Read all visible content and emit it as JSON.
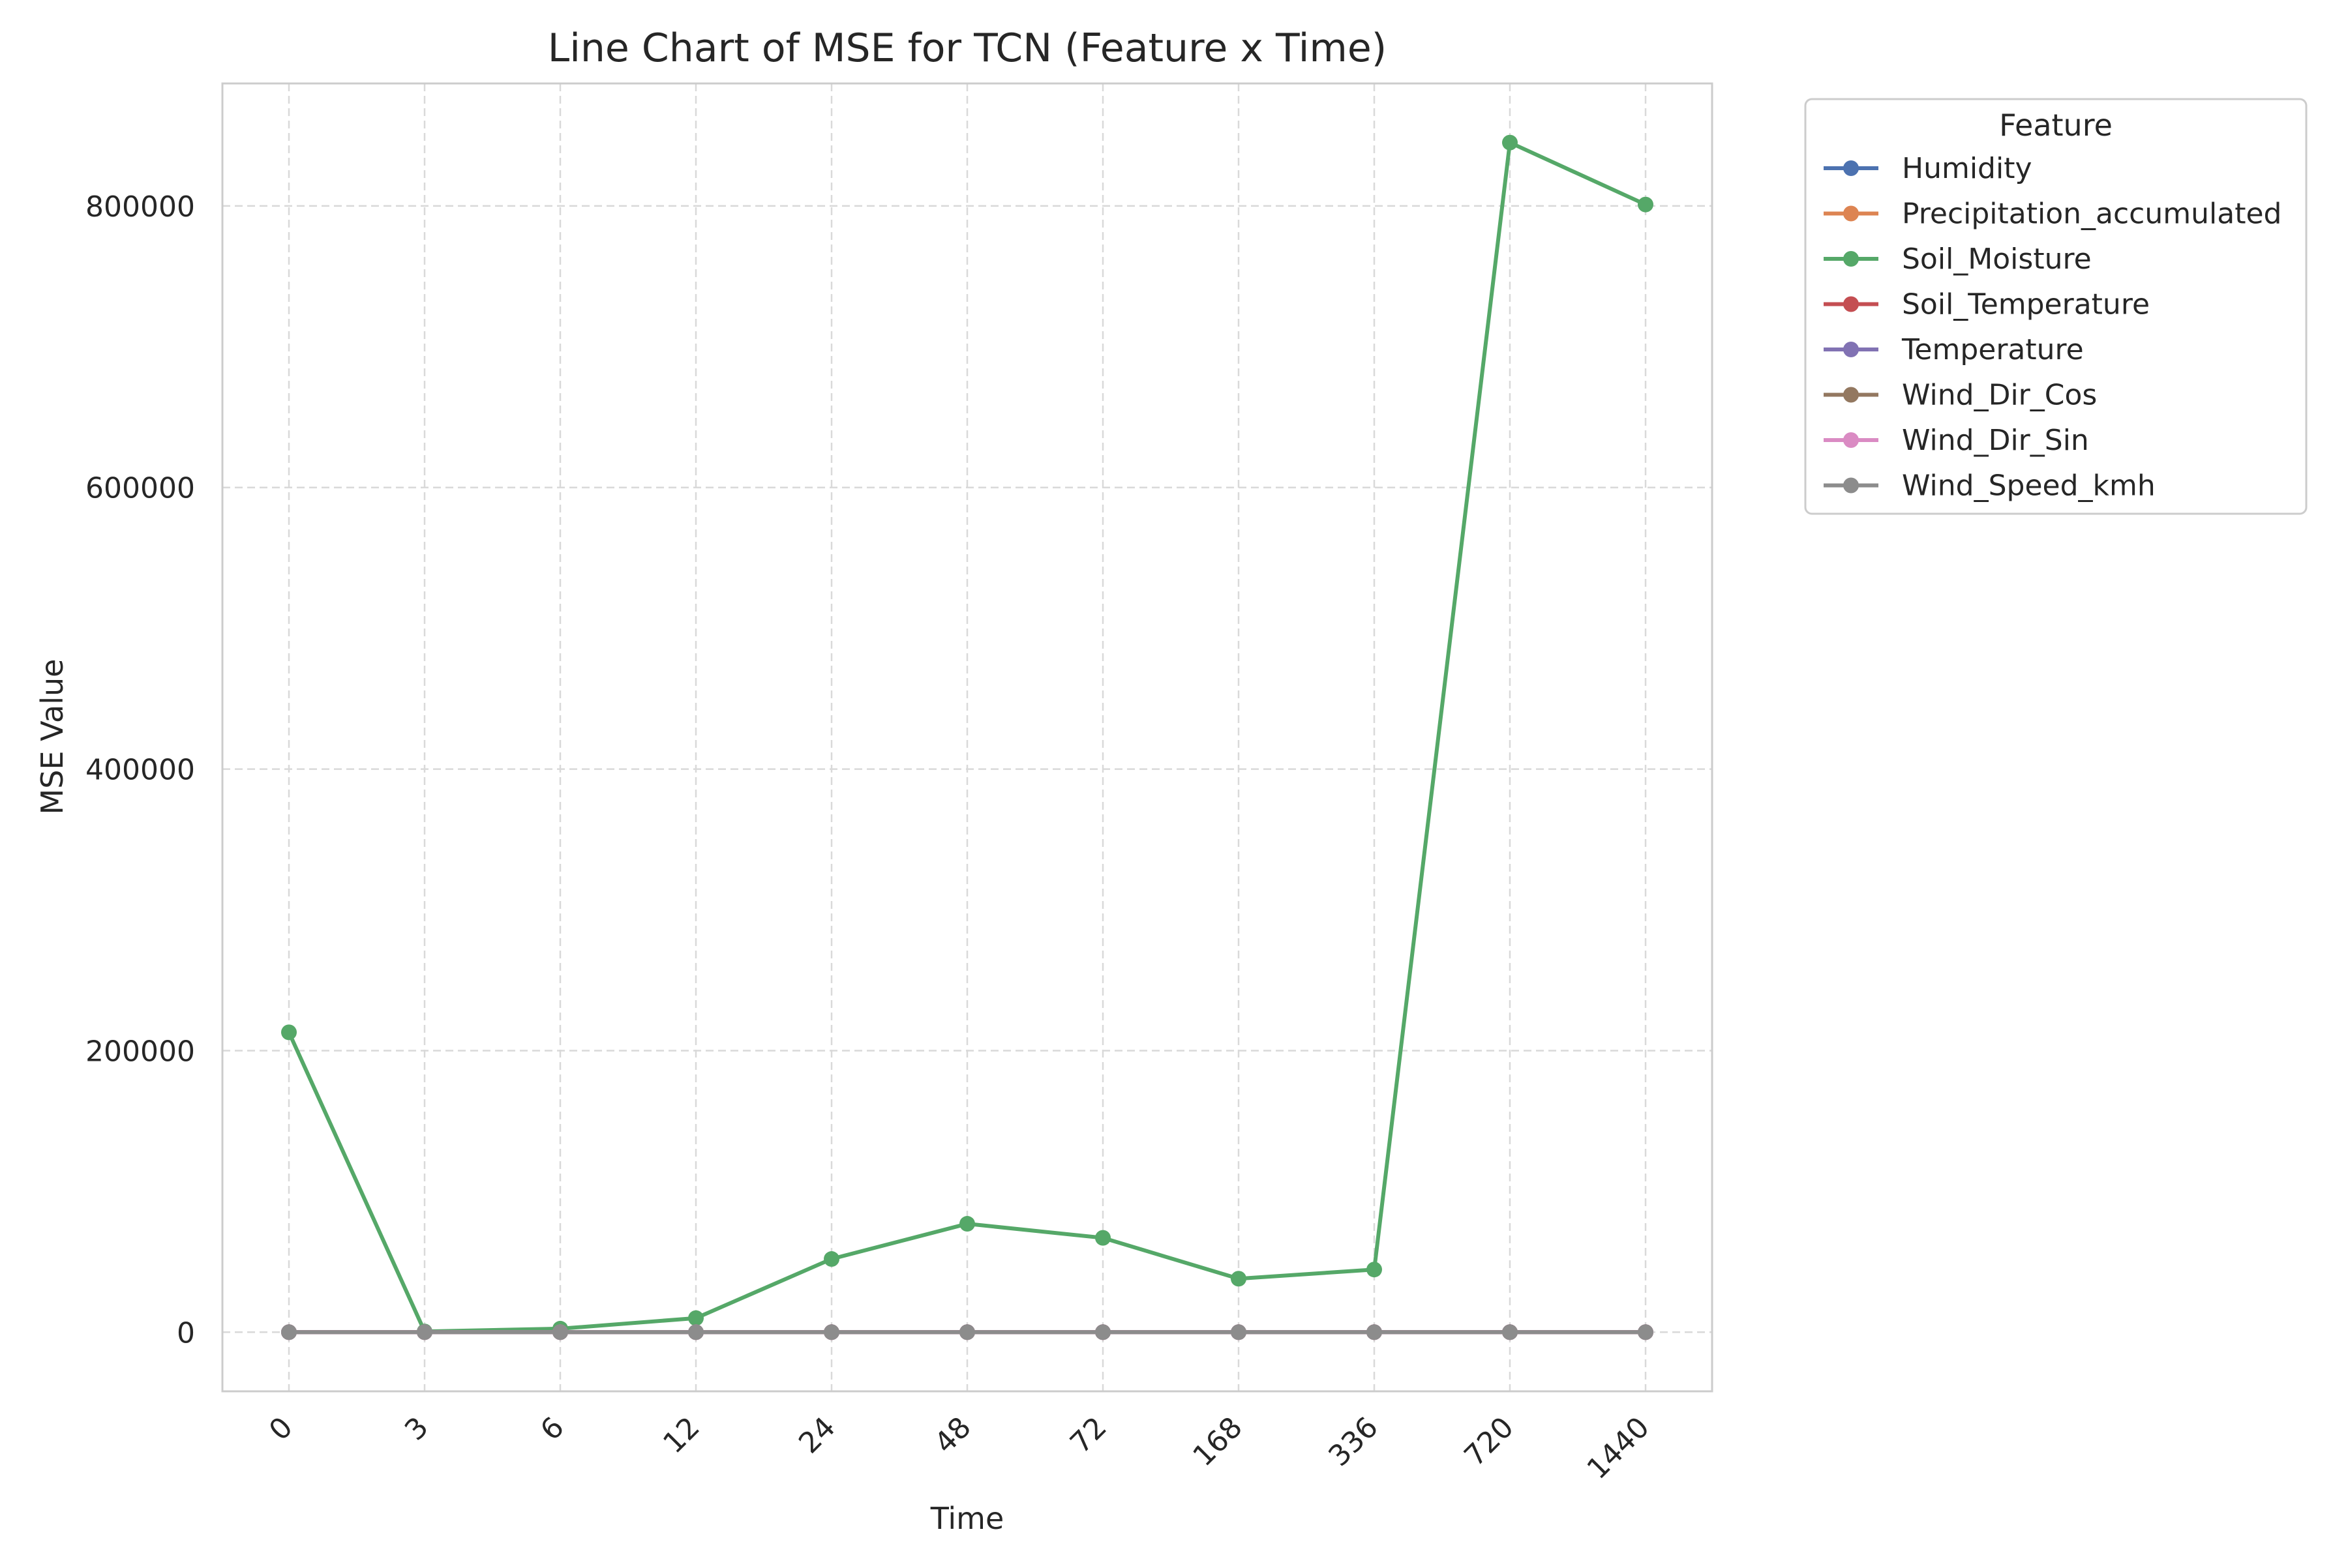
{
  "chart_data": {
    "type": "line",
    "title": "Line Chart of MSE for TCN (Feature x Time)",
    "xlabel": "Time",
    "ylabel": "MSE Value",
    "categories": [
      "0",
      "3",
      "6",
      "12",
      "24",
      "48",
      "72",
      "168",
      "336",
      "720",
      "1440"
    ],
    "yticks": [
      0,
      200000,
      400000,
      600000,
      800000
    ],
    "ytick_labels": [
      "0",
      "200000",
      "400000",
      "600000",
      "800000"
    ],
    "ylim": [
      -42000,
      887000
    ],
    "grid": true,
    "legend": {
      "title": "Feature",
      "placement": "outside-top-right"
    },
    "series": [
      {
        "name": "Humidity",
        "color": "#4c72b0",
        "values": [
          0,
          0,
          0,
          0,
          0,
          0,
          0,
          0,
          0,
          0,
          0
        ]
      },
      {
        "name": "Precipitation_accumulated",
        "color": "#dd8452",
        "values": [
          0,
          0,
          0,
          0,
          0,
          0,
          0,
          0,
          0,
          0,
          0
        ]
      },
      {
        "name": "Soil_Moisture",
        "color": "#55a868",
        "values": [
          213000,
          500,
          2500,
          10000,
          52000,
          77000,
          67000,
          38000,
          44500,
          845000,
          801000
        ]
      },
      {
        "name": "Soil_Temperature",
        "color": "#c44e52",
        "values": [
          0,
          0,
          0,
          0,
          0,
          0,
          0,
          0,
          0,
          0,
          0
        ]
      },
      {
        "name": "Temperature",
        "color": "#8172b3",
        "values": [
          0,
          0,
          0,
          0,
          0,
          0,
          0,
          0,
          0,
          0,
          0
        ]
      },
      {
        "name": "Wind_Dir_Cos",
        "color": "#937860",
        "values": [
          0,
          0,
          0,
          0,
          0,
          0,
          0,
          0,
          0,
          0,
          0
        ]
      },
      {
        "name": "Wind_Dir_Sin",
        "color": "#da8bc3",
        "values": [
          0,
          0,
          0,
          0,
          0,
          0,
          0,
          0,
          0,
          0,
          0
        ]
      },
      {
        "name": "Wind_Speed_kmh",
        "color": "#8c8c8c",
        "values": [
          0,
          0,
          0,
          0,
          0,
          0,
          0,
          0,
          0,
          0,
          0
        ]
      }
    ]
  }
}
